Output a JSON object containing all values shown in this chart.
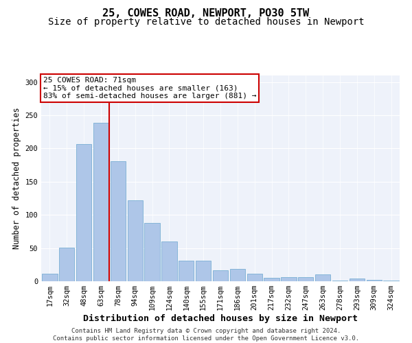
{
  "title": "25, COWES ROAD, NEWPORT, PO30 5TW",
  "subtitle": "Size of property relative to detached houses in Newport",
  "xlabel": "Distribution of detached houses by size in Newport",
  "ylabel": "Number of detached properties",
  "categories": [
    "17sqm",
    "32sqm",
    "48sqm",
    "63sqm",
    "78sqm",
    "94sqm",
    "109sqm",
    "124sqm",
    "140sqm",
    "155sqm",
    "171sqm",
    "186sqm",
    "201sqm",
    "217sqm",
    "232sqm",
    "247sqm",
    "263sqm",
    "278sqm",
    "293sqm",
    "309sqm",
    "324sqm"
  ],
  "values": [
    11,
    51,
    207,
    239,
    181,
    122,
    88,
    60,
    31,
    31,
    17,
    19,
    11,
    5,
    6,
    6,
    10,
    1,
    4,
    2,
    1
  ],
  "bar_color": "#aec6e8",
  "bar_edge_color": "#7aafd4",
  "vline_color": "#cc0000",
  "vline_pos": 3.47,
  "annotation_label": "25 COWES ROAD: 71sqm",
  "annotation_line1": "← 15% of detached houses are smaller (163)",
  "annotation_line2": "83% of semi-detached houses are larger (881) →",
  "annotation_box_color": "#ffffff",
  "annotation_box_edge": "#cc0000",
  "ylim": [
    0,
    310
  ],
  "yticks": [
    0,
    50,
    100,
    150,
    200,
    250,
    300
  ],
  "background_color": "#eef2fa",
  "footer_line1": "Contains HM Land Registry data © Crown copyright and database right 2024.",
  "footer_line2": "Contains public sector information licensed under the Open Government Licence v3.0.",
  "title_fontsize": 11,
  "subtitle_fontsize": 10,
  "xlabel_fontsize": 9.5,
  "ylabel_fontsize": 8.5,
  "tick_fontsize": 7.5,
  "annot_fontsize": 8,
  "footer_fontsize": 6.5
}
